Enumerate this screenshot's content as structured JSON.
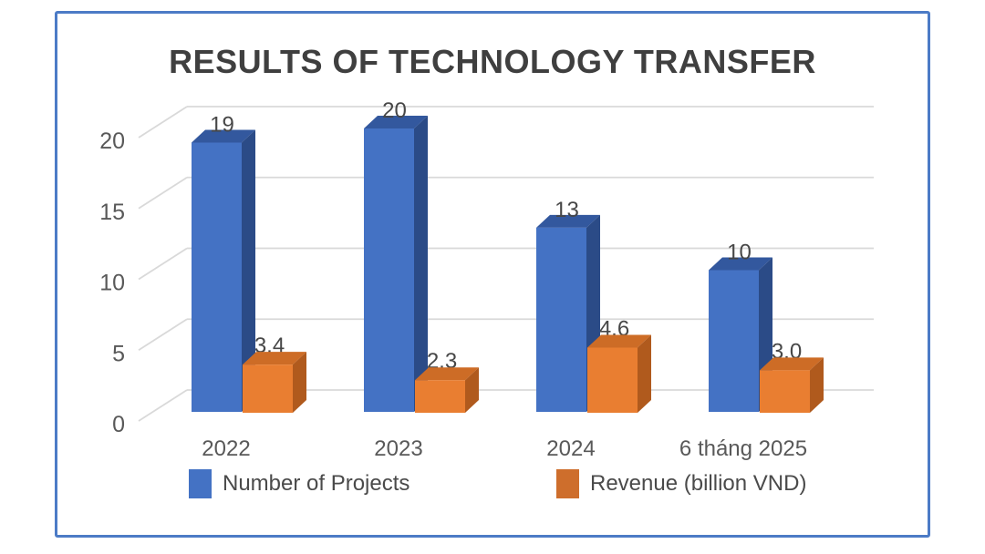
{
  "frame": {
    "border_color": "#4C7BC6",
    "background": "#FFFFFF"
  },
  "chart_data": {
    "type": "bar",
    "variant": "3d-clustered-column",
    "title": "RESULTS OF TECHNOLOGY TRANSFER",
    "categories": [
      "2022",
      "2023",
      "2024",
      "6 tháng 2025"
    ],
    "series": [
      {
        "name": "Number of Projects",
        "values": [
          19,
          20,
          13,
          10
        ],
        "data_labels": [
          "19",
          "20",
          "13",
          "10"
        ],
        "color_front": "#4472C4",
        "color_top": "#33589E",
        "color_side": "#2B4B87",
        "legend_color": "#4472C4"
      },
      {
        "name": "Revenue (billion VND)",
        "values": [
          3.4,
          2.3,
          4.6,
          3.0
        ],
        "data_labels": [
          "3,4",
          "2,3",
          "4,6",
          "3,0"
        ],
        "color_front": "#E97E31",
        "color_top": "#CD6C26",
        "color_side": "#B05A1D",
        "legend_color": "#CE6E2C"
      }
    ],
    "xlabel": "",
    "ylabel": "",
    "ylim": [
      0,
      20
    ],
    "y_ticks": [
      0,
      5,
      10,
      15,
      20
    ],
    "grid": true,
    "gridline_color": "#D9D9D9",
    "legend_position": "bottom",
    "text_colors": {
      "title": "#3F3F3F",
      "axis": "#595959",
      "data_label": "#474747"
    }
  }
}
